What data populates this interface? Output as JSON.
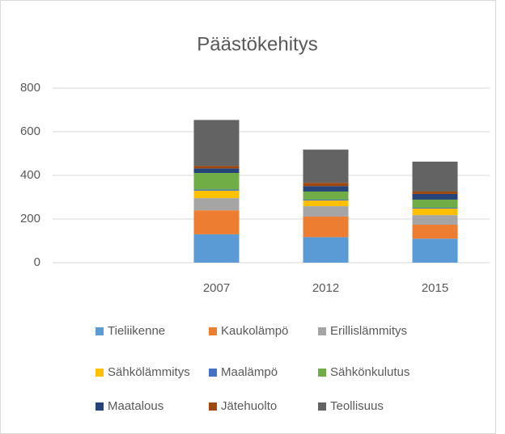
{
  "chart_data": {
    "type": "stacked_bar",
    "title": "Päästökehitys",
    "categories": [
      null,
      "2007",
      "2012",
      "2015"
    ],
    "ylim": [
      0,
      800
    ],
    "yticks": [
      0,
      200,
      400,
      600,
      800
    ],
    "grid": true,
    "series": [
      {
        "name": "Tieliikenne",
        "color": "#5b9bd5",
        "values": [
          null,
          130,
          117,
          110
        ]
      },
      {
        "name": "Kaukolämpö",
        "color": "#ed7d31",
        "values": [
          null,
          110,
          94,
          64
        ]
      },
      {
        "name": "Erillislämmitys",
        "color": "#a5a5a5",
        "values": [
          null,
          56,
          48,
          44
        ]
      },
      {
        "name": "Sähkölämmitys",
        "color": "#ffc000",
        "values": [
          null,
          34,
          26,
          30
        ]
      },
      {
        "name": "Maalämpö",
        "color": "#4472c4",
        "values": [
          null,
          5,
          4,
          4
        ]
      },
      {
        "name": "Sähkönkulutus",
        "color": "#70ad47",
        "values": [
          null,
          76,
          37,
          37
        ]
      },
      {
        "name": "Maatalous",
        "color": "#264478",
        "values": [
          null,
          21,
          25,
          26
        ]
      },
      {
        "name": "Jätehuolto",
        "color": "#9e480e",
        "values": [
          null,
          11,
          15,
          11
        ]
      },
      {
        "name": "Teollisuus",
        "color": "#636363",
        "values": [
          null,
          211,
          152,
          137
        ]
      }
    ]
  }
}
